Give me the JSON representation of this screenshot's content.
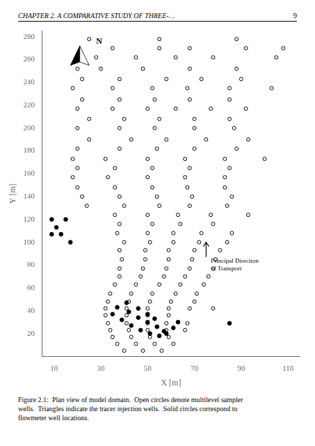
{
  "chart_data": {
    "type": "scatter",
    "title": "CHAPTER 2.   A COMPARATIVE STUDY OF THREE-…",
    "page_number": "9",
    "caption": "Figure 2.1:  Plan view of model domain.  Open circles denote multilevel sampler\nwells.  Triangles indicate the tracer injection wells.  Solid circles correspond to\nflowmeter well locations.",
    "x_label": "X [m]",
    "y_label": "Y [m]",
    "xlim": [
      5,
      115
    ],
    "ylim": [
      0,
      285
    ],
    "xticks": [
      10,
      30,
      50,
      70,
      90,
      110
    ],
    "yticks": [
      20,
      40,
      60,
      80,
      100,
      120,
      140,
      160,
      180,
      200,
      220,
      240,
      260,
      280
    ],
    "grid": false,
    "series": [
      {
        "marker": "open_circle",
        "color": "#000000",
        "x": [
          25,
          55,
          88,
          35,
          55,
          68,
          92,
          108,
          28,
          45,
          62,
          78,
          105,
          20,
          30,
          48,
          68,
          88,
          22,
          38,
          58,
          73,
          90,
          18,
          35,
          52,
          67,
          85,
          103,
          22,
          38,
          53,
          68,
          85,
          20,
          35,
          50,
          62,
          77,
          92,
          25,
          40,
          55,
          70,
          85,
          20,
          38,
          53,
          70,
          87,
          25,
          43,
          58,
          75,
          93,
          20,
          38,
          54,
          70,
          88,
          18,
          32,
          50,
          66,
          83,
          100,
          20,
          36,
          52,
          68,
          85,
          18,
          33,
          50,
          66,
          83,
          20,
          36,
          52,
          67,
          83,
          22,
          38,
          54,
          69,
          86,
          24,
          40,
          55,
          68,
          84,
          36,
          50,
          63,
          77,
          93,
          38,
          52,
          64,
          78,
          37,
          50,
          61,
          73,
          86,
          40,
          51,
          61,
          72,
          84,
          38,
          49,
          59,
          70,
          81,
          39,
          49,
          59,
          69,
          79,
          38,
          48,
          58,
          68,
          78,
          38,
          47,
          57,
          66,
          76,
          36,
          45,
          55,
          64,
          74,
          34,
          43,
          52,
          62,
          71,
          33,
          42,
          51,
          60,
          70,
          32,
          41,
          50,
          59,
          68,
          78,
          32,
          41,
          50,
          59,
          33,
          41,
          50,
          58,
          67,
          34,
          42,
          50,
          58,
          66,
          35,
          43,
          51,
          59,
          37,
          45,
          53,
          61,
          40,
          48,
          56
        ],
        "values": [
          278,
          278,
          278,
          270,
          270,
          270,
          270,
          270,
          262,
          262,
          262,
          262,
          262,
          252,
          252,
          252,
          252,
          252,
          243,
          243,
          243,
          243,
          243,
          235,
          235,
          235,
          235,
          235,
          235,
          225,
          225,
          225,
          225,
          225,
          217,
          217,
          217,
          217,
          217,
          217,
          208,
          208,
          208,
          208,
          208,
          200,
          200,
          200,
          200,
          200,
          190,
          190,
          190,
          190,
          190,
          182,
          182,
          182,
          182,
          182,
          173,
          173,
          173,
          173,
          173,
          173,
          165,
          165,
          165,
          165,
          165,
          157,
          157,
          157,
          157,
          157,
          148,
          148,
          148,
          148,
          148,
          140,
          140,
          140,
          140,
          140,
          132,
          132,
          132,
          132,
          132,
          124,
          124,
          124,
          124,
          124,
          116,
          116,
          116,
          116,
          108,
          108,
          108,
          108,
          108,
          100,
          100,
          100,
          100,
          100,
          93,
          93,
          93,
          93,
          93,
          85,
          85,
          85,
          85,
          85,
          77,
          77,
          77,
          77,
          77,
          70,
          70,
          70,
          70,
          70,
          63,
          63,
          63,
          63,
          63,
          55,
          55,
          55,
          55,
          55,
          48,
          48,
          48,
          48,
          48,
          42,
          42,
          42,
          42,
          42,
          42,
          36,
          36,
          36,
          36,
          29,
          29,
          29,
          29,
          29,
          23,
          23,
          23,
          23,
          23,
          17,
          17,
          17,
          17,
          11,
          11,
          11,
          11,
          5,
          5,
          5
        ]
      },
      {
        "marker": "circle",
        "color": "#000000",
        "x": [
          9,
          11,
          13,
          9,
          15,
          17,
          35,
          39,
          43,
          47,
          51,
          55,
          58,
          61,
          63,
          37,
          42,
          46,
          50,
          54,
          57,
          41,
          46,
          50,
          53,
          85
        ],
        "values": [
          120,
          113,
          107,
          107,
          120,
          100,
          37,
          32,
          27,
          23,
          20,
          18,
          20,
          25,
          30,
          43,
          39,
          34,
          30,
          26,
          22,
          47,
          42,
          37,
          33,
          29
        ]
      }
    ],
    "arrow": {
      "x": 75,
      "y_start": 87,
      "y_end": 100
    },
    "annotations": [
      {
        "text": "Principal Direction\nof Transport",
        "x": 77,
        "y": 86,
        "anchor": "top_left"
      },
      {
        "text": "N",
        "x": 28,
        "y": 272,
        "anchor": "bottom_left"
      }
    ],
    "north": {
      "x": 22,
      "y": 263
    }
  }
}
